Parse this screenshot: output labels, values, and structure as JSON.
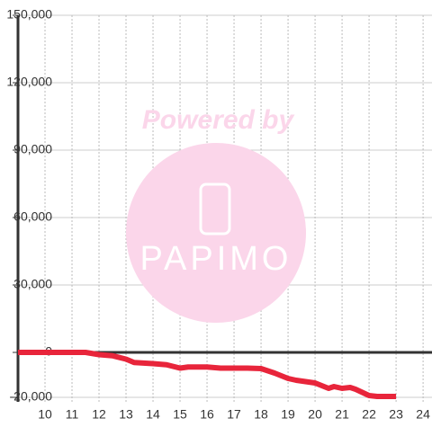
{
  "chart_data": {
    "type": "line",
    "watermark": {
      "line1": "Powered by",
      "line2": "PAPIMO"
    },
    "x": [
      9,
      11.5,
      12,
      12.5,
      13,
      13.3,
      14,
      14.5,
      15,
      15.3,
      16,
      16.5,
      17,
      17.5,
      18,
      18.5,
      19,
      19.3,
      20,
      20.5,
      20.7,
      21,
      21.3,
      21.5,
      22,
      22.3,
      23
    ],
    "series": [
      {
        "color": "#e8253b",
        "values": [
          0,
          0,
          -1000,
          -1500,
          -3000,
          -4500,
          -5000,
          -5500,
          -7000,
          -6500,
          -6500,
          -7000,
          -7000,
          -7000,
          -7200,
          -9200,
          -11600,
          -12400,
          -13600,
          -16000,
          -15200,
          -16000,
          -15600,
          -16400,
          -19200,
          -19600,
          -19600
        ]
      }
    ],
    "xlim": [
      9,
      24.33
    ],
    "ylim": [
      -22000,
      150000
    ],
    "xticks": [
      10,
      11,
      12,
      13,
      14,
      15,
      16,
      17,
      18,
      19,
      20,
      21,
      22,
      23,
      24
    ],
    "yticks": [
      {
        "value": 150000,
        "label": "150,000"
      },
      {
        "value": 120000,
        "label": "120,000"
      },
      {
        "value": 90000,
        "label": "90,000"
      },
      {
        "value": 60000,
        "label": "60,000"
      },
      {
        "value": 30000,
        "label": "30,000"
      },
      0,
      {
        "value": -20000,
        "label": "-20,000"
      }
    ],
    "grid": true
  }
}
